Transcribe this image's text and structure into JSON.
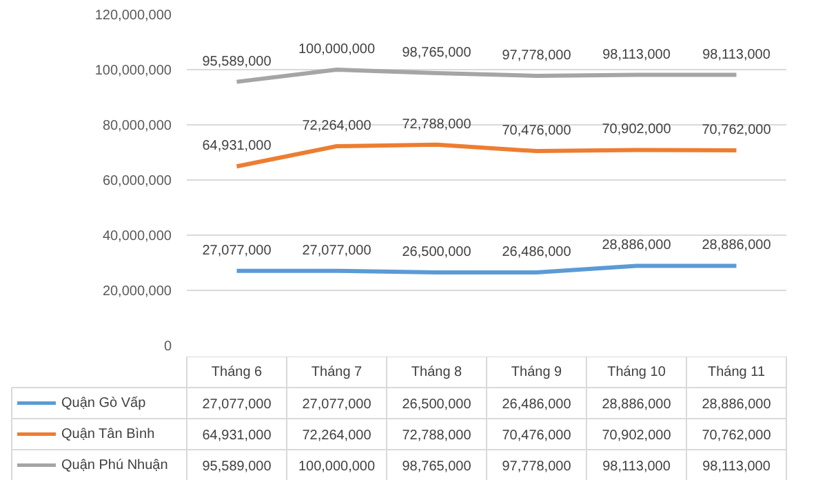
{
  "chart_data": {
    "type": "line",
    "categories": [
      "Tháng 6",
      "Tháng 7",
      "Tháng 8",
      "Tháng 9",
      "Tháng 10",
      "Tháng 11"
    ],
    "series": [
      {
        "name": "Quận Gò Vấp",
        "color": "#5b9bd5",
        "values": [
          27077000,
          27077000,
          26500000,
          26486000,
          28886000,
          28886000
        ],
        "value_labels": [
          "27,077,000",
          "27,077,000",
          "26,500,000",
          "26,486,000",
          "28,886,000",
          "28,886,000"
        ]
      },
      {
        "name": "Quận Tân Bình",
        "color": "#ed7d31",
        "values": [
          64931000,
          72264000,
          72788000,
          70476000,
          70902000,
          70762000
        ],
        "value_labels": [
          "64,931,000",
          "72,264,000",
          "72,788,000",
          "70,476,000",
          "70,902,000",
          "70,762,000"
        ]
      },
      {
        "name": "Quận Phú Nhuận",
        "color": "#a5a5a5",
        "values": [
          95589000,
          100000000,
          98765000,
          97778000,
          98113000,
          98113000
        ],
        "value_labels": [
          "95,589,000",
          "100,000,000",
          "98,765,000",
          "97,778,000",
          "98,113,000",
          "98,113,000"
        ]
      }
    ],
    "ylim": [
      0,
      120000000
    ],
    "yticks": [
      0,
      {
        "value": 20000000,
        "label": "20,000,000"
      },
      {
        "value": 40000000,
        "label": "40,000,000"
      },
      {
        "value": 60000000,
        "label": "60,000,000"
      },
      {
        "value": 80000000,
        "label": "80,000,000"
      },
      {
        "value": 100000000,
        "label": "100,000,000"
      },
      {
        "value": 120000000,
        "label": "120,000,000"
      }
    ],
    "grid": "y",
    "legend": "bottom",
    "marker": "none",
    "line_style": "solid"
  }
}
